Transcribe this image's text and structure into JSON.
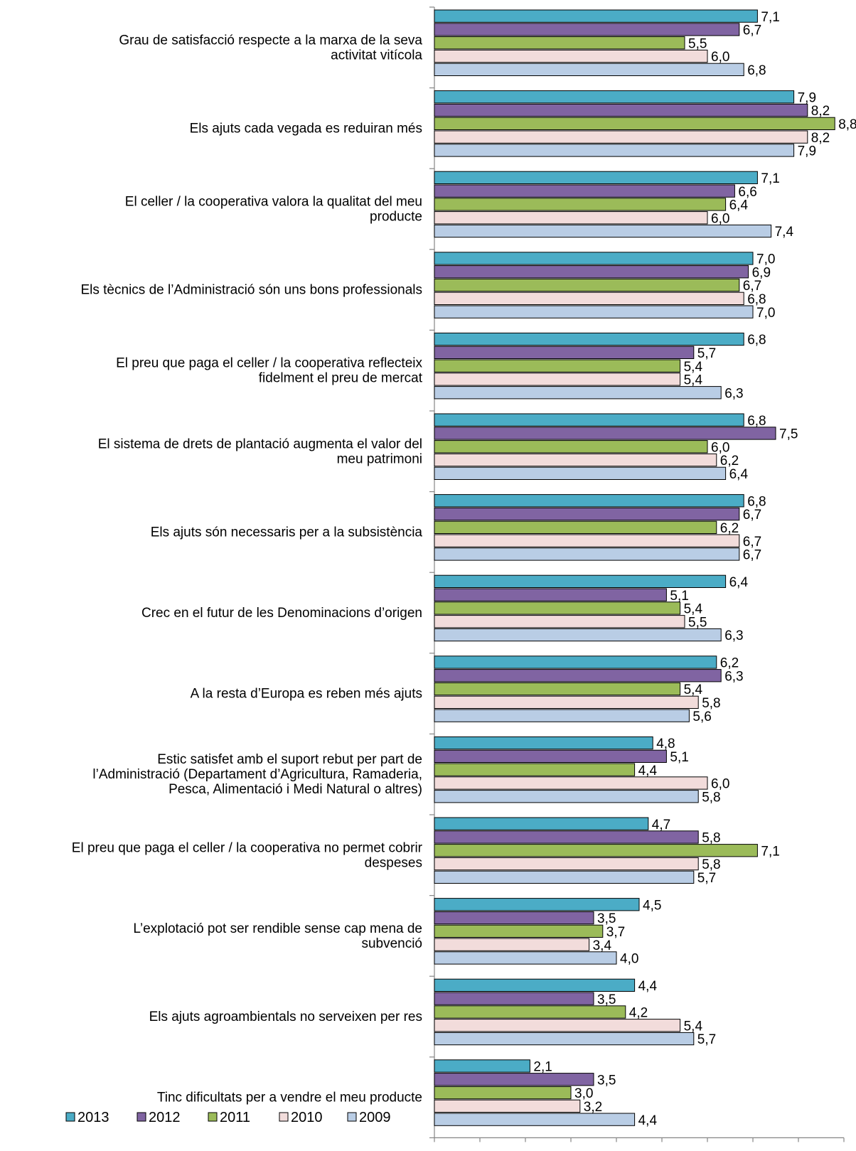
{
  "chart_data": {
    "type": "bar",
    "orientation": "horizontal",
    "xlim": [
      0,
      9
    ],
    "x_ticks": [
      "0",
      "1",
      "2",
      "3",
      "4",
      "5",
      "6",
      "7",
      "8",
      "9"
    ],
    "grid": false,
    "legend_position": "bottom-left",
    "categories": [
      [
        "Grau de satisfacció respecte a la marxa de la seva",
        "activitat vitícola"
      ],
      [
        "Els ajuts cada vegada es reduiran més"
      ],
      [
        "El celler / la cooperativa valora la qualitat del meu",
        "producte"
      ],
      [
        "Els tècnics de l’Administració són uns bons professionals"
      ],
      [
        "El preu que paga el celler / la cooperativa reflecteix",
        "fidelment el preu de mercat"
      ],
      [
        "El sistema de drets de plantació augmenta el valor del",
        "meu patrimoni"
      ],
      [
        "Els ajuts són necessaris per a la subsistència"
      ],
      [
        "Crec en el futur de les Denominacions d’origen"
      ],
      [
        "A la resta d’Europa es reben més ajuts"
      ],
      [
        "Estic satisfet amb el suport rebut per part de",
        "l’Administració (Departament d’Agricultura, Ramaderia,",
        "Pesca, Alimentació i Medi Natural o altres)"
      ],
      [
        "El preu que paga el celler / la cooperativa no permet cobrir",
        "despeses"
      ],
      [
        "L’explotació pot ser rendible sense cap mena de",
        "subvenció"
      ],
      [
        "Els ajuts agroambientals no serveixen per res"
      ],
      [
        "Tinc dificultats per a vendre el meu producte"
      ]
    ],
    "series": [
      {
        "name": "2013",
        "color": "#4bacc6",
        "values": [
          7.1,
          7.9,
          7.1,
          7.0,
          6.8,
          6.8,
          6.8,
          6.4,
          6.2,
          4.8,
          4.7,
          4.5,
          4.4,
          2.1
        ],
        "labels": [
          "7,1",
          "7,9",
          "7,1",
          "7,0",
          "6,8",
          "6,8",
          "6,8",
          "6,4",
          "6,2",
          "4,8",
          "4,7",
          "4,5",
          "4,4",
          "2,1"
        ]
      },
      {
        "name": "2012",
        "color": "#8064a2",
        "values": [
          6.7,
          8.2,
          6.6,
          6.9,
          5.7,
          7.5,
          6.7,
          5.1,
          6.3,
          5.1,
          5.8,
          3.5,
          3.5,
          3.5
        ],
        "labels": [
          "6,7",
          "8,2",
          "6,6",
          "6,9",
          "5,7",
          "7,5",
          "6,7",
          "5,1",
          "6,3",
          "5,1",
          "5,8",
          "3,5",
          "3,5",
          "3,5"
        ]
      },
      {
        "name": "2011",
        "color": "#9bbb59",
        "values": [
          5.5,
          8.8,
          6.4,
          6.7,
          5.4,
          6.0,
          6.2,
          5.4,
          5.4,
          4.4,
          7.1,
          3.7,
          4.2,
          3.0
        ],
        "labels": [
          "5,5",
          "8,8",
          "6,4",
          "6,7",
          "5,4",
          "6,0",
          "6,2",
          "5,4",
          "5,4",
          "4,4",
          "7,1",
          "3,7",
          "4,2",
          "3,0"
        ]
      },
      {
        "name": "2010",
        "color": "#f2dcdb",
        "values": [
          6.0,
          8.2,
          6.0,
          6.8,
          5.4,
          6.2,
          6.7,
          5.5,
          5.8,
          6.0,
          5.8,
          3.4,
          5.4,
          3.2
        ],
        "labels": [
          "6,0",
          "8,2",
          "6,0",
          "6,8",
          "5,4",
          "6,2",
          "6,7",
          "5,5",
          "5,8",
          "6,0",
          "5,8",
          "3,4",
          "5,4",
          "3,2"
        ]
      },
      {
        "name": "2009",
        "color": "#b9cde5",
        "values": [
          6.8,
          7.9,
          7.4,
          7.0,
          6.3,
          6.4,
          6.7,
          6.3,
          5.6,
          5.8,
          5.7,
          4.0,
          5.7,
          4.4
        ],
        "labels": [
          "6,8",
          "7,9",
          "7,4",
          "7,0",
          "6,3",
          "6,4",
          "6,7",
          "6,3",
          "5,6",
          "5,8",
          "5,7",
          "4,0",
          "5,7",
          "4,4"
        ]
      }
    ]
  }
}
